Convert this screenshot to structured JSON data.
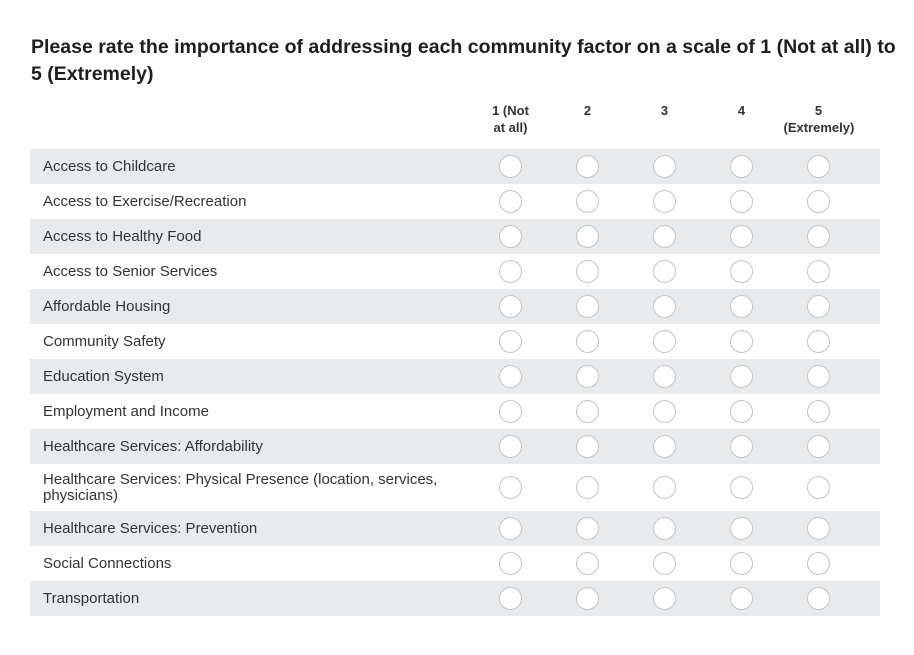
{
  "question": {
    "title": "Please rate the importance of addressing each community factor on a scale of 1 (Not at all) to 5 (Extremely)"
  },
  "scale": {
    "columns": [
      "1 (Not at all)",
      "2",
      "3",
      "4",
      "5 (Extremely)"
    ]
  },
  "factors": [
    {
      "label": "Access to Childcare",
      "selected": null
    },
    {
      "label": "Access to Exercise/Recreation",
      "selected": null
    },
    {
      "label": "Access to Healthy Food",
      "selected": null
    },
    {
      "label": "Access to Senior Services",
      "selected": null
    },
    {
      "label": "Affordable Housing",
      "selected": null
    },
    {
      "label": "Community Safety",
      "selected": null
    },
    {
      "label": "Education System",
      "selected": null
    },
    {
      "label": "Employment and Income",
      "selected": null
    },
    {
      "label": "Healthcare Services: Affordability",
      "selected": null
    },
    {
      "label": "Healthcare Services: Physical Presence (location, services, physicians)",
      "selected": null
    },
    {
      "label": "Healthcare Services: Prevention",
      "selected": null
    },
    {
      "label": "Social Connections",
      "selected": null
    },
    {
      "label": "Transportation",
      "selected": null
    }
  ],
  "colors": {
    "row_alt_background": "#e9eaec",
    "radio_border": "#c4c4c4"
  }
}
